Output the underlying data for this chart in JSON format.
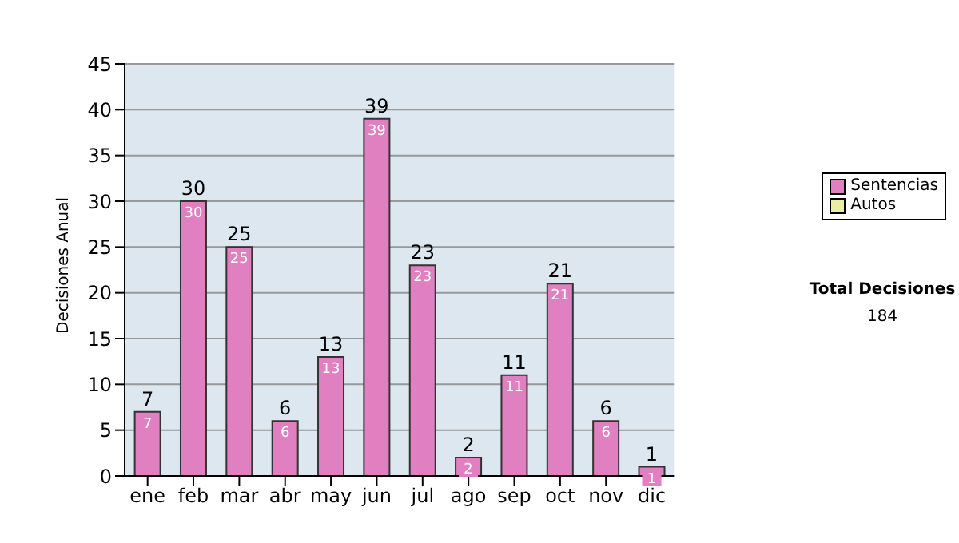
{
  "chart_data": {
    "type": "bar",
    "stacked": true,
    "ylabel": "Decisiones Anual",
    "categories": [
      "ene",
      "feb",
      "mar",
      "abr",
      "may",
      "jun",
      "jul",
      "ago",
      "sep",
      "oct",
      "nov",
      "dic"
    ],
    "series": [
      {
        "name": "Sentencias",
        "color": "#e080c0",
        "values": [
          7,
          30,
          25,
          6,
          13,
          39,
          23,
          2,
          11,
          21,
          6,
          1
        ],
        "value_labels": [
          "7",
          "30",
          "25",
          "6",
          "13",
          "39",
          "23",
          "2",
          "11",
          "21",
          "6",
          "1"
        ]
      },
      {
        "name": "Autos",
        "color": "#e8f0a0",
        "values": [
          0,
          0,
          0,
          0,
          0,
          0,
          0,
          0,
          0,
          0,
          0,
          0
        ]
      }
    ],
    "totals": [
      "7",
      "30",
      "25",
      "6",
      "13",
      "39",
      "23",
      "2",
      "11",
      "21",
      "6",
      "1"
    ],
    "ylim": [
      0,
      45
    ],
    "yticks": [
      0,
      5,
      10,
      15,
      20,
      25,
      30,
      35,
      40,
      45
    ],
    "grid": "y",
    "legend": "right",
    "annotations": [
      "Total Decisiones",
      "184"
    ]
  }
}
